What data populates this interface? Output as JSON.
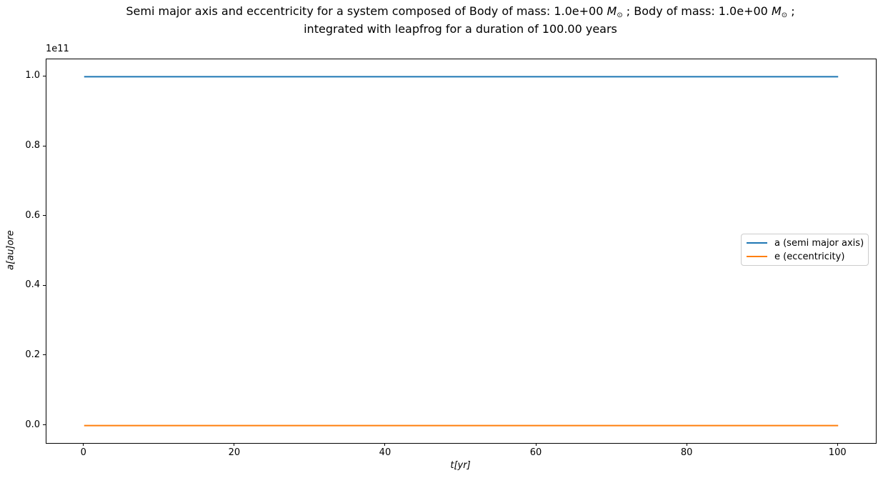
{
  "title": {
    "line1_seg1": "Semi major axis and eccentricity for a system composed of Body of mass: 1.0e+00 ",
    "mass_symbol": "M",
    "sun_subscript": "⊙",
    "line1_seg2": " ; Body of mass: 1.0e+00 ",
    "line1_seg3": " ;",
    "line2": "integrated with leapfrog for a duration of 100.00 years"
  },
  "chart_data": {
    "type": "line",
    "title": "Semi major axis and eccentricity for a system composed of Body of mass: 1.0e+00 M⊙ ; Body of mass: 1.0e+00 M⊙ ; integrated with leapfrog for a duration of 100.00 years",
    "xlabel": "t[yr]",
    "ylabel": "a[au]ore",
    "x": [
      0,
      100
    ],
    "series": [
      {
        "name": "a (semi major axis)",
        "color": "#1f77b4",
        "values": [
          100000000000.0,
          100000000000.0
        ]
      },
      {
        "name": "e (eccentricity)",
        "color": "#ff7f0e",
        "values": [
          0,
          0
        ]
      }
    ],
    "xlim": [
      -5,
      105
    ],
    "ylim": [
      -5000000000.0,
      105000000000.0
    ],
    "xticks": [
      0,
      20,
      40,
      60,
      80,
      100
    ],
    "xtick_labels": [
      "0",
      "20",
      "40",
      "60",
      "80",
      "100"
    ],
    "yticks": [
      0,
      20000000000.0,
      40000000000.0,
      60000000000.0,
      80000000000.0,
      100000000000.0
    ],
    "ytick_labels": [
      "0.0",
      "0.2",
      "0.4",
      "0.6",
      "0.8",
      "1.0"
    ],
    "y_offset_text": "1e11",
    "legend_position": "center right",
    "grid": false,
    "line_width": 2
  }
}
